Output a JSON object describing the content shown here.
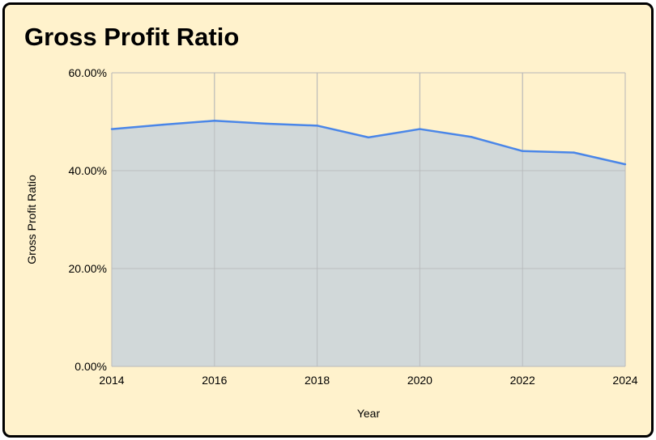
{
  "chart_data": {
    "type": "area",
    "title": "Gross Profit Ratio",
    "xlabel": "Year",
    "ylabel": "Gross Profit Ratio",
    "x": [
      2014,
      2015,
      2016,
      2017,
      2018,
      2019,
      2020,
      2021,
      2022,
      2023,
      2024
    ],
    "series": [
      {
        "values": [
          48.5,
          49.4,
          50.2,
          49.6,
          49.2,
          46.8,
          48.5,
          46.9,
          44.0,
          43.7,
          41.3
        ],
        "color": "#4a86e8",
        "fill": "#c9d3da"
      }
    ],
    "xlim": [
      2014,
      2024
    ],
    "ylim": [
      0,
      60
    ],
    "x_ticks": [
      2014,
      2016,
      2018,
      2020,
      2022,
      2024
    ],
    "y_ticks": [
      0,
      20,
      40,
      60
    ],
    "y_tick_labels": [
      "0.00%",
      "20.00%",
      "40.00%",
      "60.00%"
    ],
    "grid": true,
    "legend": "none",
    "colors": {
      "background": "#fff2cc",
      "border": "#000000",
      "grid": "#b7b7b7"
    }
  }
}
